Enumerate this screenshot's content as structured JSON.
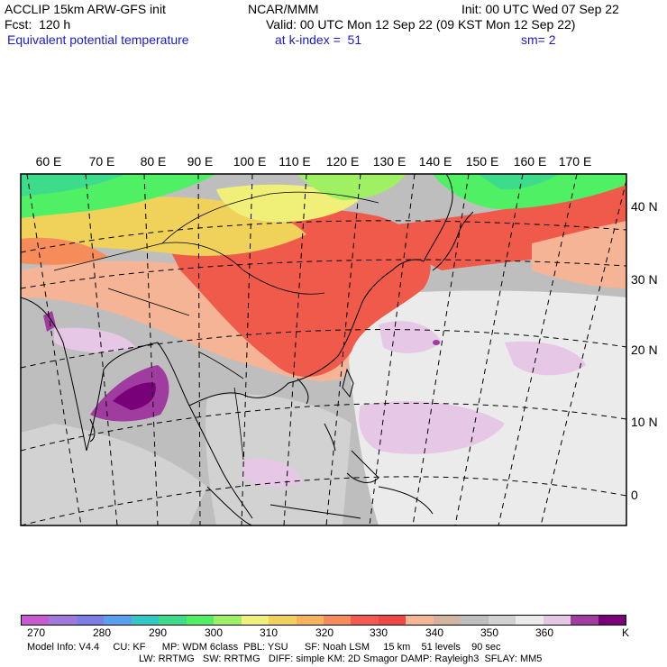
{
  "header": {
    "line1_left": "ACCLIP 15km ARW-GFS init",
    "line1_center": "NCAR/MMM",
    "line1_right": "Init: 00 UTC Wed 07 Sep 22",
    "line2_left": "Fcst:  120 h",
    "line2_right": "Valid: 00 UTC Mon 12 Sep 22 (09 KST Mon 12 Sep 22)",
    "line3_left": "Equivalent potential temperature",
    "line3_center": "at k-index =  51",
    "line3_right": "sm= 2"
  },
  "map": {
    "lon_labels": [
      "60 E",
      "70 E",
      "80 E",
      "90 E",
      "100 E",
      "110 E",
      "120 E",
      "130 E",
      "140 E",
      "150 E",
      "160 E",
      "170 E"
    ],
    "lat_labels": [
      "40 N",
      "30 N",
      "20 N",
      "10 N",
      "0"
    ]
  },
  "colorbar": {
    "colors": [
      "#c85ad2",
      "#a278dc",
      "#7d7de6",
      "#5aa0f0",
      "#32c8c8",
      "#3cdc8c",
      "#50f064",
      "#a0f064",
      "#f0f078",
      "#f0d25a",
      "#f5b45a",
      "#f58c5a",
      "#f55a50",
      "#f04646",
      "#f5b496",
      "#d2b4a0",
      "#bebebe",
      "#d2d2d2",
      "#ebebeb",
      "#e6c8e6",
      "#a03ca0",
      "#780078"
    ],
    "labels": [
      "270",
      "280",
      "290",
      "300",
      "310",
      "320",
      "330",
      "340",
      "350",
      "360",
      "K"
    ],
    "units": "K"
  },
  "footer": {
    "line1": "Model Info: V4.4     CU: KF      MP: WDM 6class  PBL: YSU      SF: Noah LSM     15 km    51 levels    90 sec",
    "line2": "LW: RRTMG   SW: RRTMG   DIFF: simple KM: 2D Smagor DAMP: Rayleigh3  SFLAY: MM5"
  }
}
